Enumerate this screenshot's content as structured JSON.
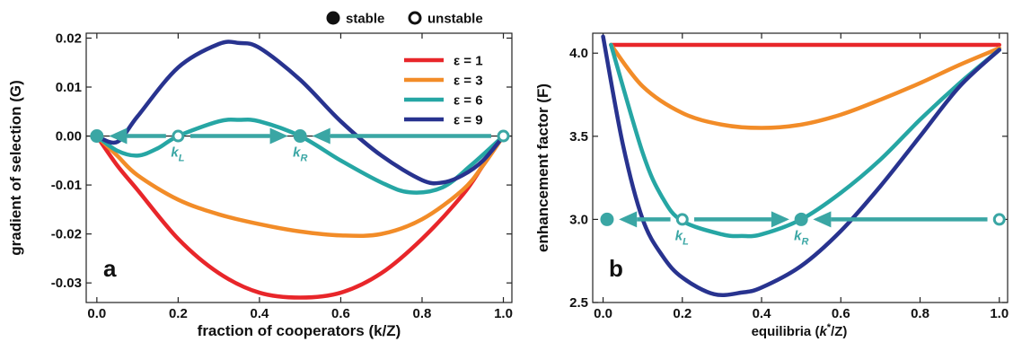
{
  "legend_top": {
    "stable": "stable",
    "unstable": "unstable"
  },
  "colors": {
    "eps1": "#e8262a",
    "eps3": "#f28c28",
    "eps6": "#26a6a4",
    "eps9": "#28338f",
    "marker": "#3aa6a4",
    "axis": "#222222"
  },
  "chart_data": [
    {
      "panel": "a",
      "type": "line",
      "ylabel": "gradient of selection (G)",
      "xlabel": "fraction of cooperators (k/Z)",
      "xlim": [
        0,
        1
      ],
      "ylim": [
        -0.034,
        0.021
      ],
      "xticks": [
        0.0,
        0.2,
        0.4,
        0.6,
        0.8,
        1.0
      ],
      "xtick_labels": [
        "0.0",
        "0.2",
        "0.4",
        "0.6",
        "0.8",
        "1.0"
      ],
      "yticks": [
        0.02,
        0.01,
        0.0,
        -0.01,
        -0.02,
        -0.03
      ],
      "ytick_labels": [
        "0.02",
        "0.01",
        "0.00",
        "-0.01",
        "-0.02",
        "-0.03"
      ],
      "zero_line": true,
      "legend": [
        "ε = 1",
        "ε = 3",
        "ε = 6",
        "ε = 9"
      ],
      "legend_position": "top-right",
      "series": [
        {
          "name": "ε = 1",
          "color_key": "eps1",
          "x": [
            0,
            0.05,
            0.1,
            0.2,
            0.3,
            0.4,
            0.5,
            0.6,
            0.7,
            0.8,
            0.9,
            0.95,
            1.0
          ],
          "y": [
            0,
            -0.006,
            -0.011,
            -0.021,
            -0.028,
            -0.032,
            -0.033,
            -0.032,
            -0.028,
            -0.021,
            -0.012,
            -0.006,
            0
          ]
        },
        {
          "name": "ε = 3",
          "color_key": "eps3",
          "x": [
            0,
            0.05,
            0.1,
            0.2,
            0.3,
            0.4,
            0.5,
            0.6,
            0.7,
            0.8,
            0.9,
            0.95,
            1.0
          ],
          "y": [
            0,
            -0.004,
            -0.008,
            -0.013,
            -0.016,
            -0.018,
            -0.0195,
            -0.0203,
            -0.02,
            -0.017,
            -0.011,
            -0.006,
            0
          ]
        },
        {
          "name": "ε = 6",
          "color_key": "eps6",
          "x": [
            0,
            0.05,
            0.1,
            0.15,
            0.2,
            0.3,
            0.35,
            0.4,
            0.5,
            0.6,
            0.7,
            0.77,
            0.85,
            0.92,
            1.0
          ],
          "y": [
            0,
            -0.003,
            -0.004,
            -0.0025,
            0,
            0.003,
            0.0033,
            0.003,
            0,
            -0.005,
            -0.0095,
            -0.0115,
            -0.0105,
            -0.006,
            0
          ]
        },
        {
          "name": "ε = 9",
          "color_key": "eps9",
          "x": [
            0,
            0.05,
            0.1,
            0.2,
            0.3,
            0.35,
            0.4,
            0.5,
            0.6,
            0.7,
            0.8,
            0.85,
            0.9,
            0.95,
            1.0
          ],
          "y": [
            0,
            -0.0012,
            0.004,
            0.014,
            0.0188,
            0.019,
            0.018,
            0.0115,
            0.003,
            -0.004,
            -0.009,
            -0.0095,
            -0.008,
            -0.005,
            0
          ]
        }
      ],
      "fixed_points": [
        {
          "x": 0.0,
          "y": 0,
          "kind": "stable"
        },
        {
          "x": 0.2,
          "y": 0,
          "kind": "unstable",
          "label": "k",
          "sub": "L"
        },
        {
          "x": 0.5,
          "y": 0,
          "kind": "stable",
          "label": "k",
          "sub": "R"
        },
        {
          "x": 1.0,
          "y": 0,
          "kind": "unstable"
        }
      ],
      "arrows": [
        {
          "from": 0.17,
          "to": 0.03,
          "y": 0
        },
        {
          "from": 0.23,
          "to": 0.47,
          "y": 0
        },
        {
          "from": 0.97,
          "to": 0.53,
          "y": 0
        }
      ]
    },
    {
      "panel": "b",
      "type": "line",
      "ylabel": "enhancement factor (F)",
      "xlabel_parts": [
        "equilibria (",
        "k",
        "*",
        "/Z)"
      ],
      "xlim": [
        0,
        1
      ],
      "ylim": [
        2.5,
        4.12
      ],
      "xticks": [
        0.0,
        0.2,
        0.4,
        0.6,
        0.8,
        1.0
      ],
      "xtick_labels": [
        "0.0",
        "0.2",
        "0.4",
        "0.6",
        "0.8",
        "1.0"
      ],
      "yticks": [
        2.5,
        3.0,
        3.5,
        4.0
      ],
      "ytick_labels": [
        "2.5",
        "3.0",
        "3.5",
        "4.0"
      ],
      "series": [
        {
          "name": "ε = 1",
          "color_key": "eps1",
          "x": [
            0.02,
            1.0
          ],
          "y": [
            4.05,
            4.05
          ]
        },
        {
          "name": "ε = 3",
          "color_key": "eps3",
          "x": [
            0.02,
            0.1,
            0.2,
            0.3,
            0.4,
            0.5,
            0.6,
            0.7,
            0.8,
            0.9,
            1.0
          ],
          "y": [
            4.05,
            3.8,
            3.64,
            3.57,
            3.55,
            3.57,
            3.63,
            3.72,
            3.82,
            3.93,
            4.03
          ]
        },
        {
          "name": "ε = 6",
          "color_key": "eps6",
          "x": [
            0.02,
            0.1,
            0.15,
            0.2,
            0.3,
            0.35,
            0.4,
            0.5,
            0.6,
            0.7,
            0.8,
            0.9,
            1.0
          ],
          "y": [
            4.05,
            3.4,
            3.13,
            2.99,
            2.91,
            2.9,
            2.91,
            3.0,
            3.16,
            3.36,
            3.6,
            3.82,
            4.02
          ]
        },
        {
          "name": "ε = 9",
          "color_key": "eps9",
          "x": [
            0.0,
            0.05,
            0.1,
            0.15,
            0.2,
            0.28,
            0.35,
            0.4,
            0.5,
            0.6,
            0.7,
            0.8,
            0.9,
            1.0
          ],
          "y": [
            4.1,
            3.45,
            3.0,
            2.78,
            2.65,
            2.55,
            2.56,
            2.59,
            2.72,
            2.93,
            3.2,
            3.5,
            3.8,
            4.02
          ]
        }
      ],
      "fixed_points": [
        {
          "x": 0.01,
          "y": 3.0,
          "kind": "stable"
        },
        {
          "x": 0.2,
          "y": 3.0,
          "kind": "unstable",
          "label": "k",
          "sub": "L"
        },
        {
          "x": 0.5,
          "y": 3.0,
          "kind": "stable",
          "label": "k",
          "sub": "R"
        },
        {
          "x": 1.0,
          "y": 3.0,
          "kind": "unstable"
        }
      ],
      "arrows": [
        {
          "from": 0.17,
          "to": 0.04,
          "y": 3.0
        },
        {
          "from": 0.23,
          "to": 0.47,
          "y": 3.0
        },
        {
          "from": 0.97,
          "to": 0.53,
          "y": 3.0
        }
      ]
    }
  ]
}
